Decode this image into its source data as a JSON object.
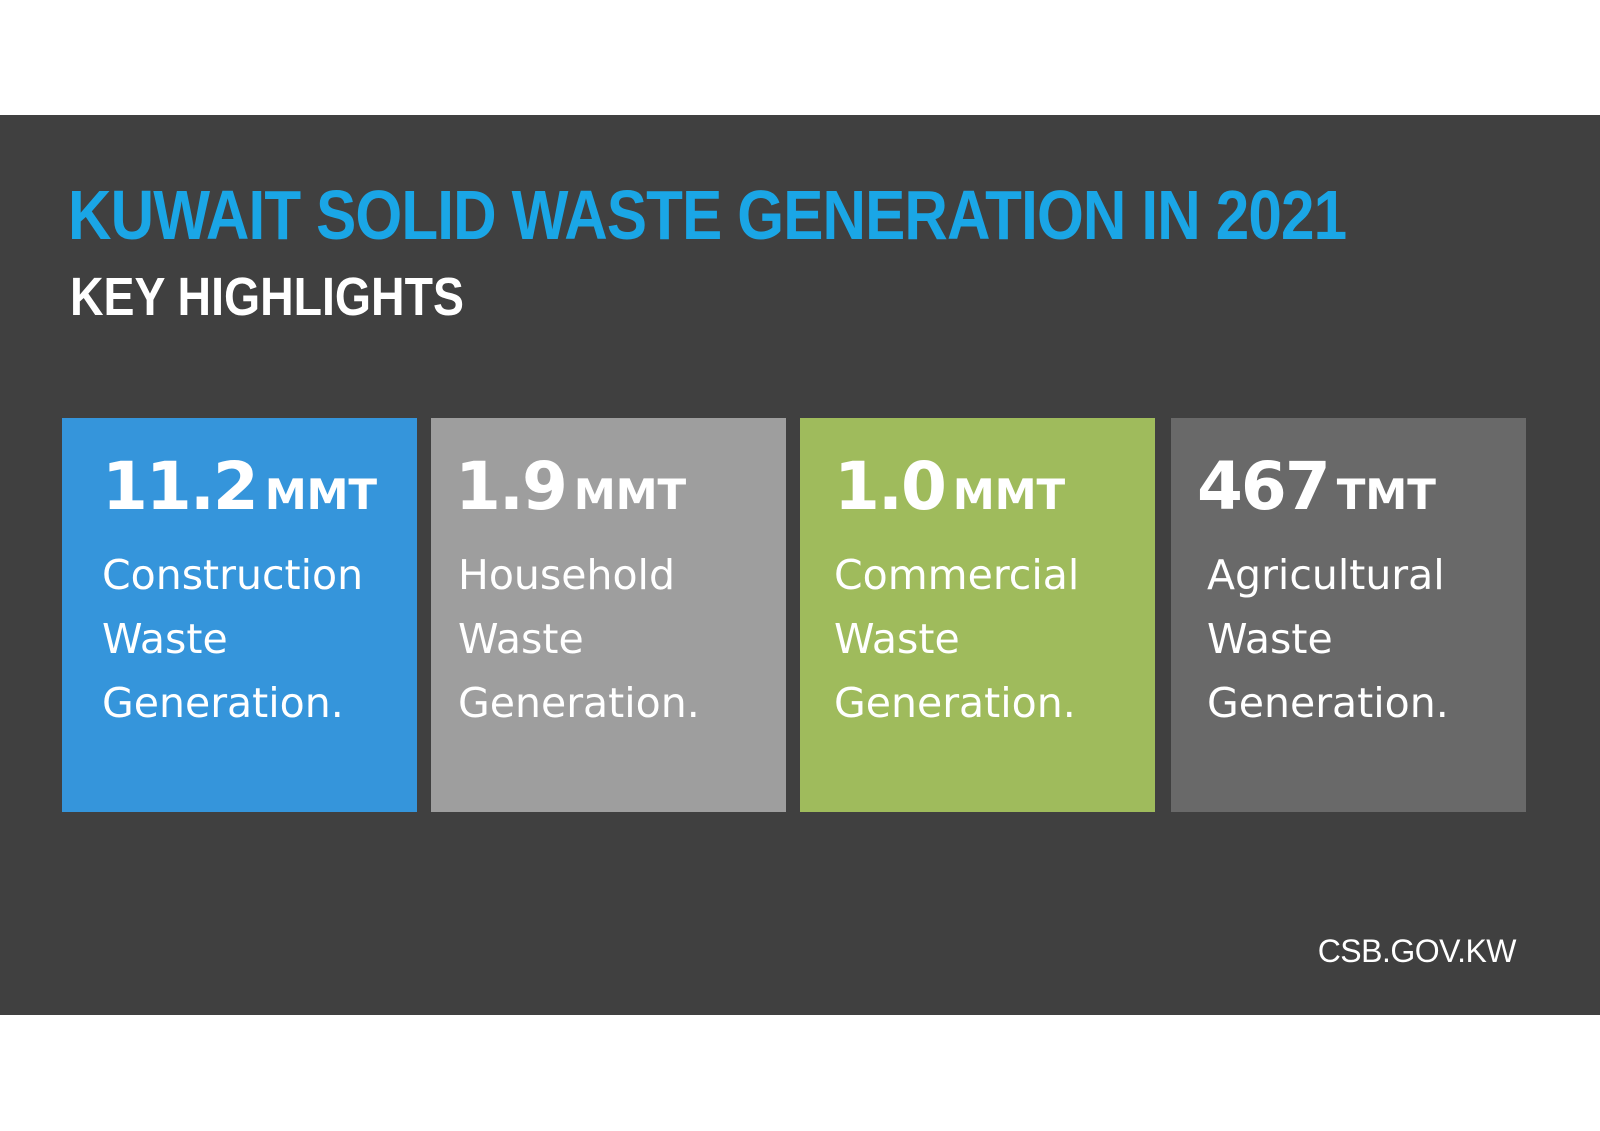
{
  "header": {
    "title": "KUWAIT SOLID WASTE GENERATION IN 2021",
    "subtitle": "KEY HIGHLIGHTS"
  },
  "cards": [
    {
      "value": "11.2",
      "unit": "MMT",
      "label_lines": [
        "Construction",
        "Waste",
        "Generation."
      ],
      "color": "#3595db"
    },
    {
      "value": "1.9",
      "unit": "MMT",
      "label_lines": [
        "Household",
        "Waste",
        "Generation."
      ],
      "color": "#9e9e9e"
    },
    {
      "value": "1.0",
      "unit": "MMT",
      "label_lines": [
        "Commercial",
        "Waste",
        "Generation."
      ],
      "color": "#9fbb5c"
    },
    {
      "value": "467",
      "unit": "TMT",
      "label_lines": [
        "Agricultural",
        "Waste",
        "Generation."
      ],
      "color": "#696969"
    }
  ],
  "footer": {
    "source": "CSB.GOV.KW"
  },
  "colors": {
    "banner_background": "#404040",
    "title": "#1aa6e6",
    "page_background": "#ffffff"
  }
}
